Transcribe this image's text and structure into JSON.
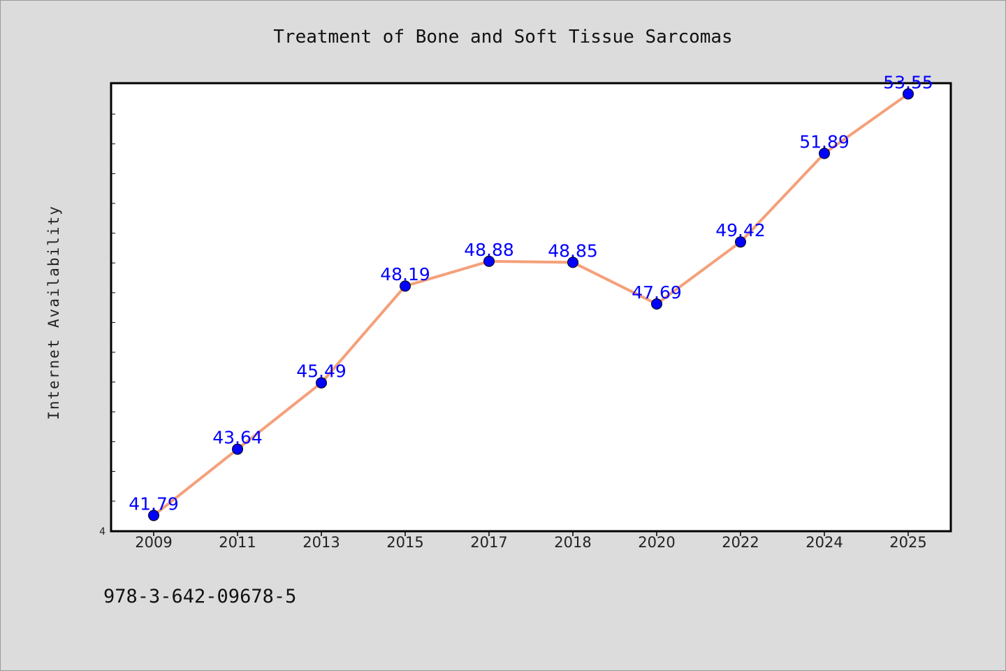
{
  "chart_data": {
    "type": "line",
    "title": "Treatment of Bone and Soft Tissue Sarcomas",
    "xlabel": "",
    "ylabel": "Internet Availability",
    "categories": [
      "2009",
      "2011",
      "2013",
      "2015",
      "2017",
      "2018",
      "2020",
      "2022",
      "2024",
      "2025"
    ],
    "series": [
      {
        "values": [
          41.79,
          43.64,
          45.49,
          48.19,
          48.88,
          48.85,
          47.69,
          49.42,
          51.89,
          53.55
        ],
        "labels": [
          "41.79",
          "43.64",
          "45.49",
          "48.19",
          "48.88",
          "48.85",
          "47.69",
          "49.42",
          "51.89",
          "53.55"
        ],
        "line_color": "#f4a07a",
        "marker_color": "#0000ff"
      }
    ],
    "y_tick_labels_shown": [
      "4"
    ],
    "grid": false,
    "legend": "none"
  },
  "footer": {
    "isbn": "978-3-642-09678-5"
  }
}
